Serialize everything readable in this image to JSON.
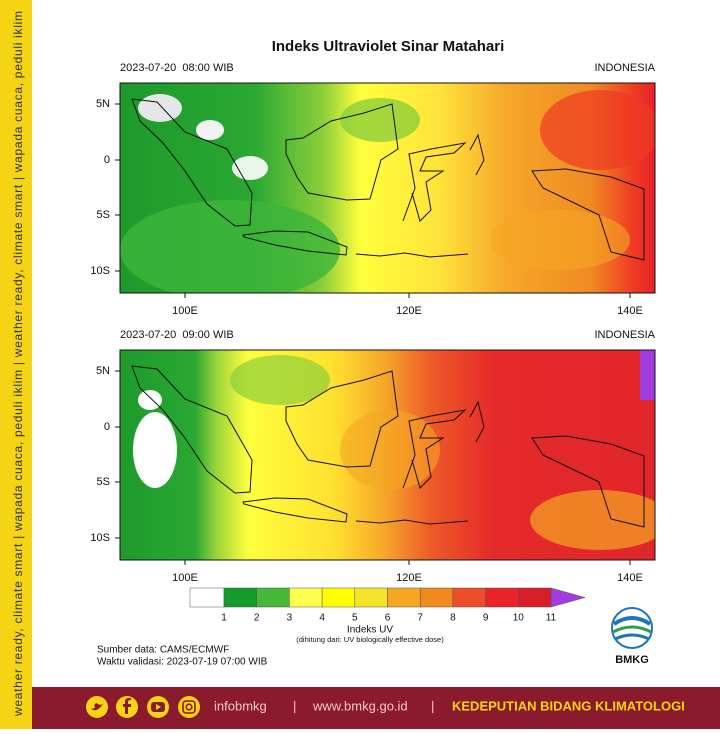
{
  "side_text": "weather ready, climate smart | wapada cuaca, peduli iklim | weather ready, climate smart | wapada cuaca, peduli iklim",
  "title": "Indeks Ultraviolet Sinar Matahari",
  "panels": [
    {
      "time": "2023-07-20  08:00 WIB",
      "region": "INDONESIA"
    },
    {
      "time": "2023-07-20  09:00 WIB",
      "region": "INDONESIA"
    }
  ],
  "map_axes": {
    "lat_labels": [
      "5N",
      "0",
      "5S",
      "10S"
    ],
    "lon_labels": [
      "100E",
      "120E",
      "140E"
    ]
  },
  "colorbar": {
    "colors": [
      "#ffffff",
      "#159b2a",
      "#45b83a",
      "#ffff4d",
      "#ffff00",
      "#f4e42a",
      "#f5a623",
      "#f08a1e",
      "#ee4d2a",
      "#e8232a",
      "#d81e28"
    ],
    "extend_color": "#a03ce0",
    "labels": [
      1,
      2,
      3,
      4,
      5,
      6,
      7,
      8,
      9,
      10,
      11
    ],
    "title": "Indeks UV",
    "note": "(dihitung dari: UV biologically effective dose)"
  },
  "source": "Sumber data: CAMS/ECMWF",
  "validity": "Waktu validasi: 2023-07-19 07:00 WIB",
  "logo_text": "BMKG",
  "footer": {
    "handle": "infobmkg",
    "separator": "|",
    "website": "www.bmkg.go.id",
    "department": "KEDEPUTIAN BIDANG KLIMATOLOGI"
  }
}
